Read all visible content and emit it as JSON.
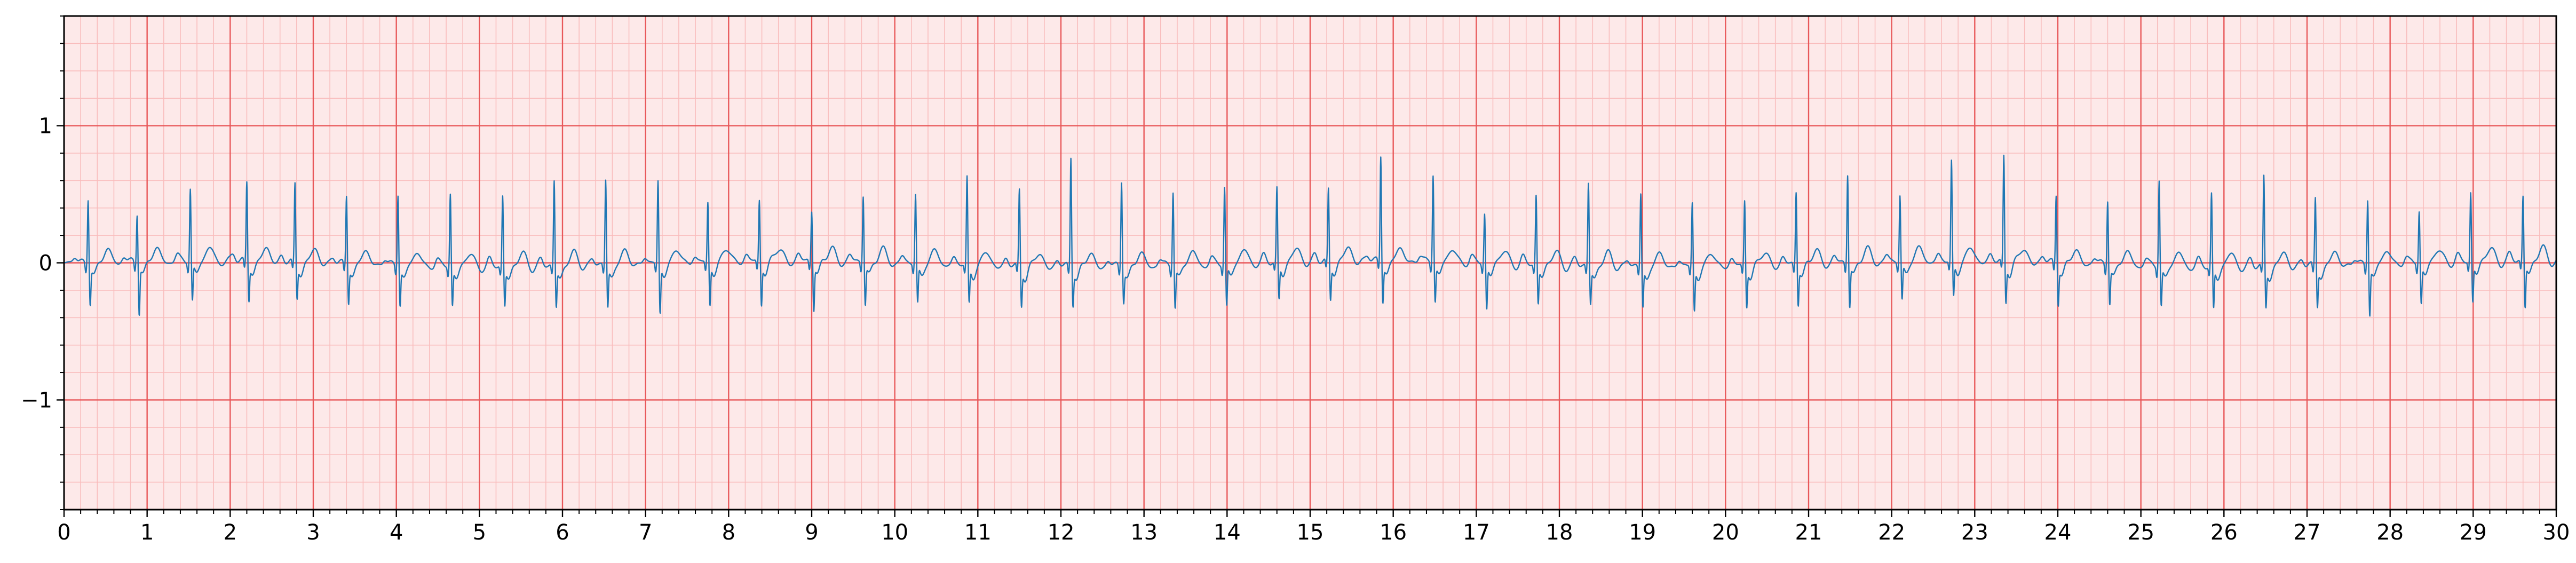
{
  "chart_data": {
    "type": "line",
    "title": "",
    "xlabel": "",
    "ylabel": "",
    "xlim": [
      0,
      30
    ],
    "ylim": [
      -1.8,
      1.8
    ],
    "x_major_ticks": [
      "0",
      "1",
      "2",
      "3",
      "4",
      "5",
      "6",
      "7",
      "8",
      "9",
      "10",
      "11",
      "12",
      "13",
      "14",
      "15",
      "16",
      "17",
      "18",
      "19",
      "20",
      "21",
      "22",
      "23",
      "24",
      "25",
      "26",
      "27",
      "28",
      "29",
      "30"
    ],
    "y_major_ticks": [
      {
        "value": -1,
        "label": "−1"
      },
      {
        "value": 0,
        "label": "0"
      },
      {
        "value": 1,
        "label": "1"
      }
    ],
    "x_minor_step": 0.2,
    "y_minor_step": 0.2,
    "grid": true,
    "colors": {
      "major_grid": "#e8585a",
      "minor_grid": "#f9bdbd",
      "background": "#fde9e9",
      "trace": "#1f77b4",
      "axis": "#000000"
    },
    "series": [
      {
        "beat_times": [
          0.29,
          0.88,
          1.52,
          2.2,
          2.78,
          3.4,
          4.02,
          4.65,
          5.28,
          5.9,
          6.52,
          7.15,
          7.75,
          8.37,
          9.0,
          9.62,
          10.25,
          10.87,
          11.5,
          12.12,
          12.73,
          13.35,
          13.97,
          14.6,
          15.22,
          15.85,
          16.48,
          17.1,
          17.72,
          18.35,
          18.98,
          19.6,
          20.23,
          20.85,
          21.47,
          22.1,
          22.72,
          23.35,
          23.98,
          24.6,
          25.22,
          25.85,
          26.48,
          27.1,
          27.73,
          28.35,
          28.97,
          29.6
        ],
        "r_amplitudes": [
          0.48,
          0.36,
          0.53,
          0.58,
          0.57,
          0.5,
          0.52,
          0.53,
          0.51,
          0.62,
          0.62,
          0.6,
          0.43,
          0.44,
          0.37,
          0.49,
          0.5,
          0.63,
          0.55,
          0.8,
          0.63,
          0.55,
          0.56,
          0.53,
          0.52,
          0.77,
          0.64,
          0.36,
          0.5,
          0.6,
          0.53,
          0.46,
          0.47,
          0.53,
          0.65,
          0.48,
          0.72,
          0.76,
          0.5,
          0.48,
          0.63,
          0.52,
          0.65,
          0.5,
          0.48,
          0.38,
          0.5,
          0.47
        ],
        "s_amplitudes": [
          -0.27,
          -0.35,
          -0.28,
          -0.26,
          -0.24,
          -0.26,
          -0.27,
          -0.27,
          -0.27,
          -0.28,
          -0.29,
          -0.35,
          -0.3,
          -0.3,
          -0.33,
          -0.29,
          -0.28,
          -0.27,
          -0.27,
          -0.25,
          -0.23,
          -0.29,
          -0.3,
          -0.26,
          -0.26,
          -0.27,
          -0.27,
          -0.32,
          -0.27,
          -0.26,
          -0.28,
          -0.31,
          -0.28,
          -0.27,
          -0.3,
          -0.27,
          -0.25,
          -0.28,
          -0.27,
          -0.26,
          -0.28,
          -0.3,
          -0.28,
          -0.27,
          -0.35,
          -0.28,
          -0.28,
          -0.32
        ]
      }
    ]
  }
}
